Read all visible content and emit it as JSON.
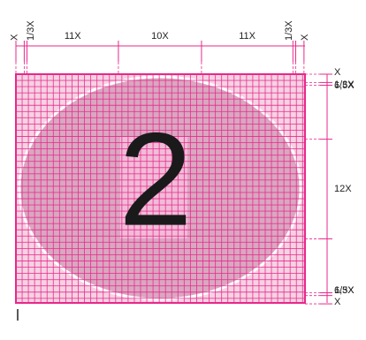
{
  "top_dimensions": [
    "X",
    "1/3X",
    "11X",
    "10X",
    "11X",
    "1/3X",
    "X"
  ],
  "right_dimensions": [
    "X",
    "1/3X",
    "6,5X",
    "12X",
    "6,5X",
    "1/3X",
    "X"
  ],
  "numeral": "2"
}
